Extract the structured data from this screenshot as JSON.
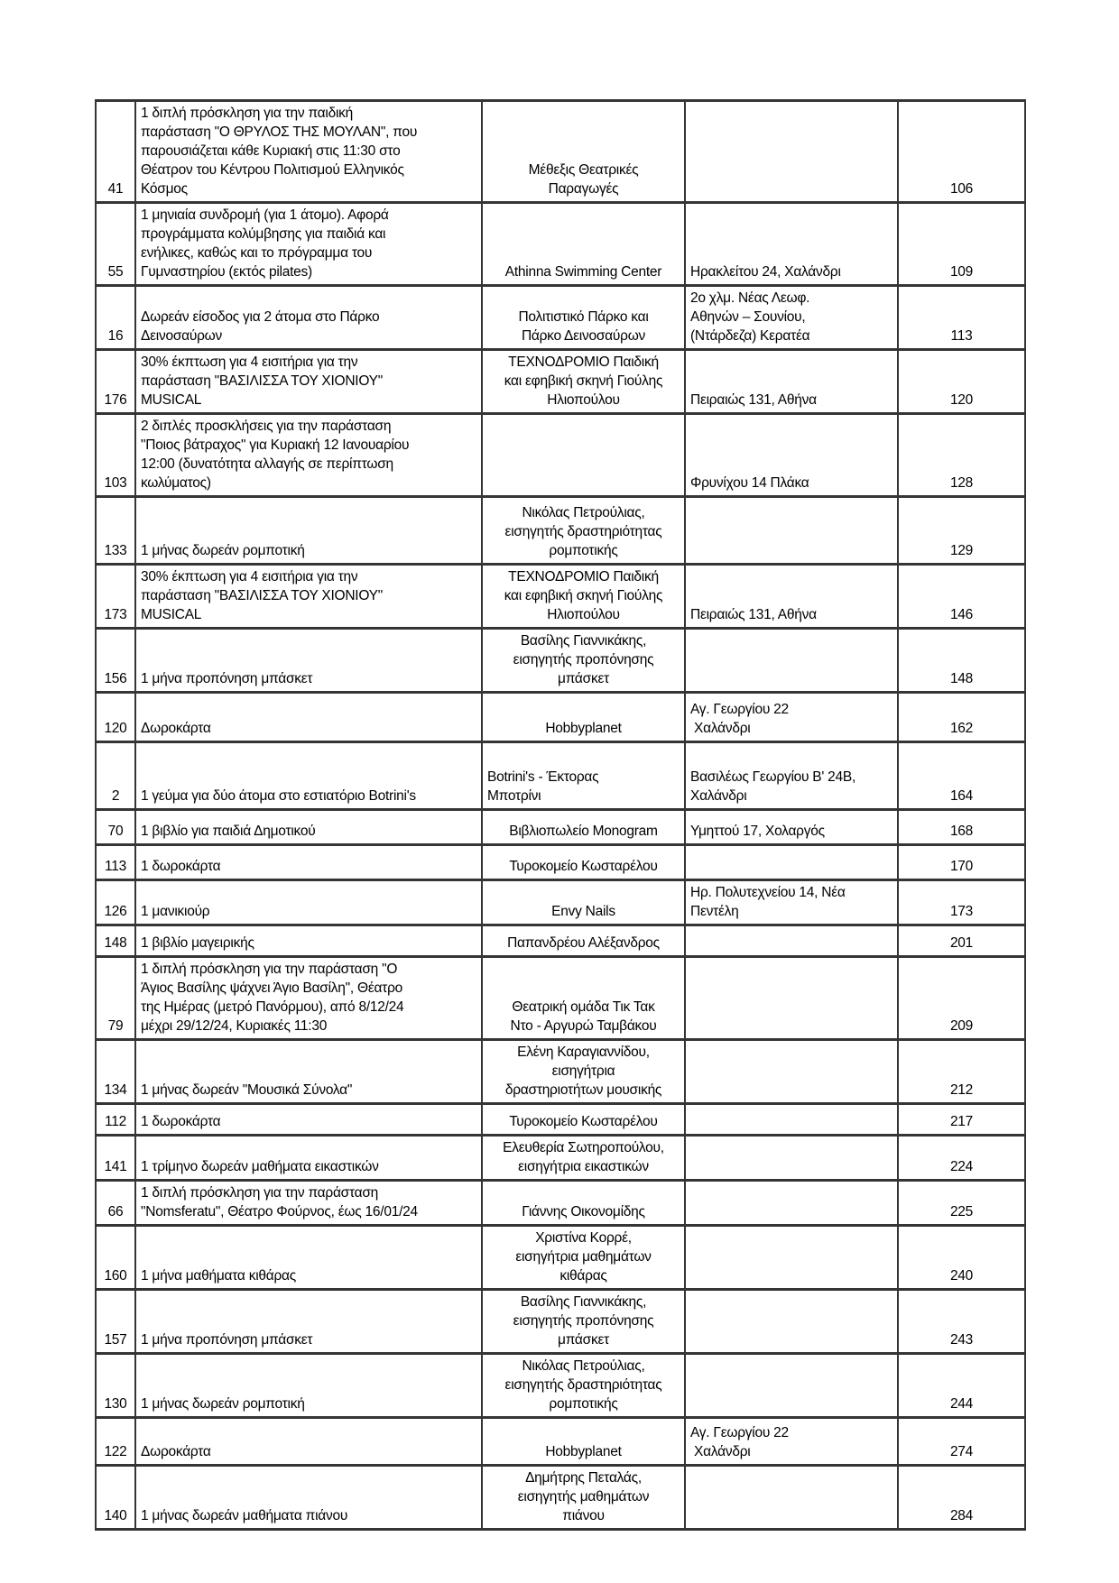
{
  "page": {
    "background": "#ffffff",
    "border_color": "#353535"
  },
  "table": {
    "column_roles": [
      "id",
      "description",
      "provider",
      "address",
      "value"
    ],
    "rows": [
      {
        "id": "41",
        "desc": "1 διπλή πρόσκληση για την παιδική\nπαράσταση \"Ο ΘΡΥΛΟΣ ΤΗΣ ΜΟΥΛΑΝ\", που\nπαρουσιάζεται κάθε Κυριακή στις 11:30 στο\nΘέατρον του Κέντρου Πολιτισμού Ελληνικός\nΚόσμος",
        "provider": "Μέθεξις Θεατρικές\nΠαραγωγές",
        "address": "",
        "value": "106"
      },
      {
        "id": "55",
        "desc": "1 μηνιαία συνδρομή (για 1 άτομο). Αφορά\nπρογράμματα κολύμβησης για παιδιά και\nενήλικες, καθώς και το πρόγραμμα του\nΓυμναστηρίου (εκτός pilates)",
        "provider": "Athinna Swimming Center",
        "address": "Ηρακλείτου 24, Χαλάνδρι",
        "value": "109"
      },
      {
        "id": "16",
        "desc": "Δωρεάν είσοδος για 2 άτομα στο Πάρκο\nΔεινοσαύρων",
        "provider": "Πολιτιστικό Πάρκο και\nΠάρκο Δεινοσαύρων",
        "address": "2ο χλμ. Νέας Λεωφ.\nΑθηνών – Σουνίου,\n(Ντάρδεζα) Κερατέα",
        "value": "113"
      },
      {
        "id": "176",
        "desc": "30% έκπτωση για 4 εισιτήρια για την\nπαράσταση \"ΒΑΣΙΛΙΣΣΑ ΤΟΥ ΧΙΟΝΙΟΥ\"\nMUSICAL",
        "provider": "ΤΕΧΝΟΔΡΟΜΙΟ Παιδική\nκαι εφηβική σκηνή Γιούλης\nΗλιοπούλου",
        "address": "Πειραιώς 131, Αθήνα",
        "value": "120"
      },
      {
        "id": "103",
        "desc": "2 διπλές προσκλήσεις για την παράσταση\n\"Ποιος βάτραχος\" για Κυριακή 12 Ιανουαρίου\n12:00 (δυνατότητα αλλαγής σε περίπτωση\nκωλύματος)",
        "provider": "",
        "address": "Φρυνίχου 14 Πλάκα",
        "value": "128"
      },
      {
        "id": "133",
        "desc": "1 μήνας δωρεάν ρομποτική",
        "provider": "Νικόλας Πετρούλιας,\nεισηγητής δραστηριότητας\nρομποτικής",
        "address": "",
        "value": "129"
      },
      {
        "id": "173",
        "desc": "30% έκπτωση για 4 εισιτήρια για την\nπαράσταση \"ΒΑΣΙΛΙΣΣΑ ΤΟΥ ΧΙΟΝΙΟΥ\"\nMUSICAL",
        "provider": "ΤΕΧΝΟΔΡΟΜΙΟ Παιδική\nκαι εφηβική σκηνή Γιούλης\nΗλιοπούλου",
        "address": "Πειραιώς 131, Αθήνα",
        "value": "146"
      },
      {
        "id": "156",
        "desc": "1 μήνα προπόνηση μπάσκετ",
        "provider": "Βασίλης Γιαννικάκης,\nεισηγητής προπόνησης\nμπάσκετ",
        "address": "",
        "value": "148"
      },
      {
        "id": "120",
        "desc": "Δωροκάρτα",
        "provider": "Hobbyplanet",
        "address": "Αγ. Γεωργίου 22\n Χαλάνδρι",
        "value": "162"
      },
      {
        "id": "2",
        "desc": "1 γεύμα για δύο άτομα στο εστιατόριο Botrini's",
        "provider": "Botrini's - Έκτορας\nΜποτρίνι",
        "provider_align": "left",
        "address": "Βασιλέως Γεωργίου Β' 24Β,\nΧαλάνδρι",
        "value": "164"
      },
      {
        "id": "70",
        "desc": "1 βιβλίο για παιδιά Δημοτικού",
        "provider": "Βιβλιοπωλείο Monogram",
        "address": "Υμηττού 17, Χολαργός",
        "value": "168"
      },
      {
        "id": "113",
        "desc": "1 δωροκάρτα",
        "provider": "Τυροκομείο Κωσταρέλου",
        "address": "",
        "value": "170"
      },
      {
        "id": "126",
        "desc": "1 μανικιούρ",
        "provider": "Envy Nails",
        "address": "Ηρ. Πολυτεχνείου 14, Νέα\nΠεντέλη",
        "value": "173"
      },
      {
        "id": "148",
        "desc": "1 βιβλίο μαγειρικής",
        "provider": "Παπανδρέου Αλέξανδρος",
        "address": "",
        "value": "201"
      },
      {
        "id": "79",
        "desc": "1 διπλή πρόσκληση για την παράσταση \"Ο\nΆγιος Βασίλης ψάχνει Άγιο Βασίλη\", Θέατρο\nτης Ημέρας (μετρό Πανόρμου), από 8/12/24\nμέχρι 29/12/24, Κυριακές 11:30",
        "provider": "Θεατρική ομάδα Τικ Τακ\nΝτο - Αργυρώ Ταμβάκου",
        "address": "",
        "value": "209"
      },
      {
        "id": "134",
        "desc": "1 μήνας δωρεάν \"Μουσικά Σύνολα\"",
        "provider": "Ελένη Καραγιαννίδου,\nεισηγήτρια\nδραστηριοτήτων μουσικής",
        "address": "",
        "value": "212"
      },
      {
        "id": "112",
        "desc": "1 δωροκάρτα",
        "provider": "Τυροκομείο Κωσταρέλου",
        "address": "",
        "value": "217"
      },
      {
        "id": "141",
        "desc": "1 τρίμηνο δωρεάν μαθήματα εικαστικών",
        "provider": "Ελευθερία Σωτηροπούλου,\nεισηγήτρια εικαστικών",
        "address": "",
        "value": "224"
      },
      {
        "id": "66",
        "desc": "1 διπλή πρόσκληση για την παράσταση\n\"Nomsferatu\", Θέατρο Φούρνος, έως 16/01/24",
        "provider": "Γιάννης Οικονομίδης",
        "address": "",
        "value": "225"
      },
      {
        "id": "160",
        "desc": "1 μήνα μαθήματα κιθάρας",
        "provider": "Χριστίνα Κορρέ,\nεισηγήτρια μαθημάτων\nκιθάρας",
        "address": "",
        "value": "240"
      },
      {
        "id": "157",
        "desc": "1 μήνα προπόνηση μπάσκετ",
        "provider": "Βασίλης Γιαννικάκης,\nεισηγητής προπόνησης\nμπάσκετ",
        "address": "",
        "value": "243"
      },
      {
        "id": "130",
        "desc": "1 μήνας δωρεάν ρομποτική",
        "provider": "Νικόλας Πετρούλιας,\nεισηγητής δραστηριότητας\nρομποτικής",
        "address": "",
        "value": "244"
      },
      {
        "id": "122",
        "desc": "Δωροκάρτα",
        "provider": "Hobbyplanet",
        "address": "Αγ. Γεωργίου 22\n Χαλάνδρι",
        "value": "274"
      },
      {
        "id": "140",
        "desc": "1 μήνας δωρεάν μαθήματα πιάνου",
        "provider": "Δημήτρης Πεταλάς,\nεισηγητής μαθημάτων\nπιάνου",
        "address": "",
        "value": "284"
      }
    ]
  }
}
